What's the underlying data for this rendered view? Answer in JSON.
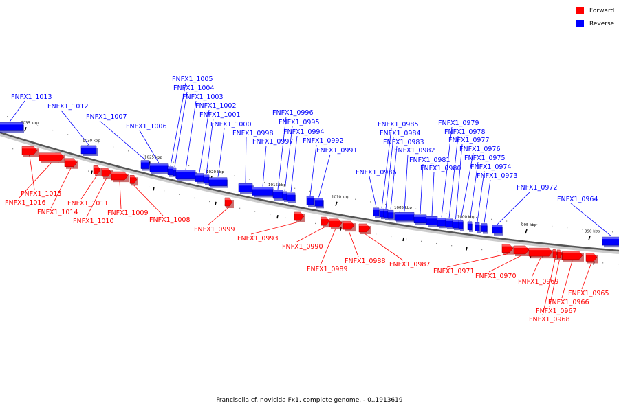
{
  "legend": {
    "forward_label": "Forward",
    "reverse_label": "Reverse",
    "forward_color": "#ff0000",
    "reverse_color": "#0000ff"
  },
  "caption": "Francisella cf. novicida Fx1, complete genome. - 0..1913619",
  "ticks": [
    "1035 kbp",
    "1030 kbp",
    "1025 kbp",
    "1020 kbp",
    "1015 kbp",
    "1010 kbp",
    "1005 kbp",
    "1000 kbp",
    "995 kbp",
    "990 kbp"
  ],
  "genes": [
    {
      "name": "FNFX1_1013",
      "strand": "reverse"
    },
    {
      "name": "FNFX1_1012",
      "strand": "reverse"
    },
    {
      "name": "FNFX1_1007",
      "strand": "reverse"
    },
    {
      "name": "FNFX1_1006",
      "strand": "reverse"
    },
    {
      "name": "FNFX1_1005",
      "strand": "reverse"
    },
    {
      "name": "FNFX1_1004",
      "strand": "reverse"
    },
    {
      "name": "FNFX1_1003",
      "strand": "reverse"
    },
    {
      "name": "FNFX1_1002",
      "strand": "reverse"
    },
    {
      "name": "FNFX1_1001",
      "strand": "reverse"
    },
    {
      "name": "FNFX1_1000",
      "strand": "reverse"
    },
    {
      "name": "FNFX1_0998",
      "strand": "reverse"
    },
    {
      "name": "FNFX1_0997",
      "strand": "reverse"
    },
    {
      "name": "FNFX1_0996",
      "strand": "reverse"
    },
    {
      "name": "FNFX1_0995",
      "strand": "reverse"
    },
    {
      "name": "FNFX1_0994",
      "strand": "reverse"
    },
    {
      "name": "FNFX1_0992",
      "strand": "reverse"
    },
    {
      "name": "FNFX1_0991",
      "strand": "reverse"
    },
    {
      "name": "FNFX1_0986",
      "strand": "reverse"
    },
    {
      "name": "FNFX1_0985",
      "strand": "reverse"
    },
    {
      "name": "FNFX1_0984",
      "strand": "reverse"
    },
    {
      "name": "FNFX1_0983",
      "strand": "reverse"
    },
    {
      "name": "FNFX1_0982",
      "strand": "reverse"
    },
    {
      "name": "FNFX1_0981",
      "strand": "reverse"
    },
    {
      "name": "FNFX1_0980",
      "strand": "reverse"
    },
    {
      "name": "FNFX1_0979",
      "strand": "reverse"
    },
    {
      "name": "FNFX1_0978",
      "strand": "reverse"
    },
    {
      "name": "FNFX1_0977",
      "strand": "reverse"
    },
    {
      "name": "FNFX1_0976",
      "strand": "reverse"
    },
    {
      "name": "FNFX1_0975",
      "strand": "reverse"
    },
    {
      "name": "FNFX1_0974",
      "strand": "reverse"
    },
    {
      "name": "FNFX1_0973",
      "strand": "reverse"
    },
    {
      "name": "FNFX1_0972",
      "strand": "reverse"
    },
    {
      "name": "FNFX1_0964",
      "strand": "reverse"
    },
    {
      "name": "FNFX1_1015",
      "strand": "forward"
    },
    {
      "name": "FNFX1_1016",
      "strand": "forward"
    },
    {
      "name": "FNFX1_1014",
      "strand": "forward"
    },
    {
      "name": "FNFX1_1011",
      "strand": "forward"
    },
    {
      "name": "FNFX1_1010",
      "strand": "forward"
    },
    {
      "name": "FNFX1_1009",
      "strand": "forward"
    },
    {
      "name": "FNFX1_1008",
      "strand": "forward"
    },
    {
      "name": "FNFX1_0999",
      "strand": "forward"
    },
    {
      "name": "FNFX1_0993",
      "strand": "forward"
    },
    {
      "name": "FNFX1_0990",
      "strand": "forward"
    },
    {
      "name": "FNFX1_0989",
      "strand": "forward"
    },
    {
      "name": "FNFX1_0988",
      "strand": "forward"
    },
    {
      "name": "FNFX1_0987",
      "strand": "forward"
    },
    {
      "name": "FNFX1_0971",
      "strand": "forward"
    },
    {
      "name": "FNFX1_0970",
      "strand": "forward"
    },
    {
      "name": "FNFX1_0969",
      "strand": "forward"
    },
    {
      "name": "FNFX1_0965",
      "strand": "forward"
    },
    {
      "name": "FNFX1_0966",
      "strand": "forward"
    },
    {
      "name": "FNFX1_0967",
      "strand": "forward"
    },
    {
      "name": "FNFX1_0968",
      "strand": "forward"
    }
  ]
}
